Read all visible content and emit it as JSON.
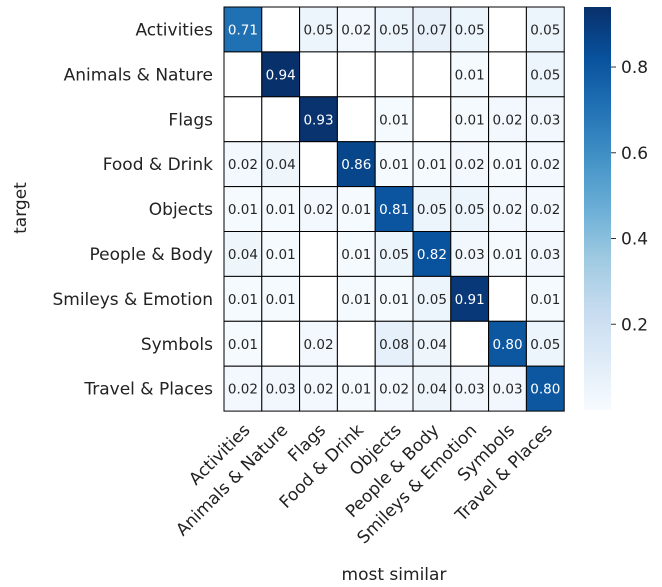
{
  "chart_data": {
    "type": "heatmap",
    "title": "",
    "xlabel": "most similar",
    "ylabel": "target",
    "x_categories": [
      "Activities",
      "Animals & Nature",
      "Flags",
      "Food & Drink",
      "Objects",
      "People & Body",
      "Smileys & Emotion",
      "Symbols",
      "Travel & Places"
    ],
    "y_categories": [
      "Activities",
      "Animals & Nature",
      "Flags",
      "Food & Drink",
      "Objects",
      "People & Body",
      "Smileys & Emotion",
      "Symbols",
      "Travel & Places"
    ],
    "values": [
      [
        0.71,
        null,
        0.05,
        0.02,
        0.05,
        0.07,
        0.05,
        null,
        0.05
      ],
      [
        null,
        0.94,
        null,
        null,
        null,
        null,
        0.01,
        null,
        0.05
      ],
      [
        null,
        null,
        0.93,
        null,
        0.01,
        null,
        0.01,
        0.02,
        0.03
      ],
      [
        0.02,
        0.04,
        null,
        0.86,
        0.01,
        0.01,
        0.02,
        0.01,
        0.02
      ],
      [
        0.01,
        0.01,
        0.02,
        0.01,
        0.81,
        0.05,
        0.05,
        0.02,
        0.02
      ],
      [
        0.04,
        0.01,
        null,
        0.01,
        0.05,
        0.82,
        0.03,
        0.01,
        0.03
      ],
      [
        0.01,
        0.01,
        null,
        0.01,
        0.01,
        0.05,
        0.91,
        null,
        0.01
      ],
      [
        0.01,
        null,
        0.02,
        null,
        0.08,
        0.04,
        null,
        0.8,
        0.05
      ],
      [
        0.02,
        0.03,
        0.02,
        0.01,
        0.02,
        0.04,
        0.03,
        0.03,
        0.8
      ]
    ],
    "value_labels": [
      [
        "0.71",
        "",
        "0.05",
        "0.02",
        "0.05",
        "0.07",
        "0.05",
        "",
        "0.05"
      ],
      [
        "",
        "0.94",
        "",
        "",
        "",
        "",
        "0.01",
        "",
        "0.05"
      ],
      [
        "",
        "",
        "0.93",
        "",
        "0.01",
        "",
        "0.01",
        "0.02",
        "0.03"
      ],
      [
        "0.02",
        "0.04",
        "",
        "0.86",
        "0.01",
        "0.01",
        "0.02",
        "0.01",
        "0.02"
      ],
      [
        "0.01",
        "0.01",
        "0.02",
        "0.01",
        "0.81",
        "0.05",
        "0.05",
        "0.02",
        "0.02"
      ],
      [
        "0.04",
        "0.01",
        "",
        "0.01",
        "0.05",
        "0.82",
        "0.03",
        "0.01",
        "0.03"
      ],
      [
        "0.01",
        "0.01",
        "",
        "0.01",
        "0.01",
        "0.05",
        "0.91",
        "",
        "0.01"
      ],
      [
        "0.01",
        "",
        "0.02",
        "",
        "0.08",
        "0.04",
        "",
        "0.80",
        "0.05"
      ],
      [
        "0.02",
        "0.03",
        "0.02",
        "0.01",
        "0.02",
        "0.04",
        "0.03",
        "0.03",
        "0.80"
      ]
    ],
    "colorscale": "Blues",
    "color_range": [
      0,
      0.94
    ],
    "colorbar": {
      "ticks": [
        0.2,
        0.4,
        0.6,
        0.8
      ],
      "tick_labels": [
        "0.2",
        "0.4",
        "0.6",
        "0.8"
      ]
    },
    "grid": true,
    "legend": "right"
  }
}
